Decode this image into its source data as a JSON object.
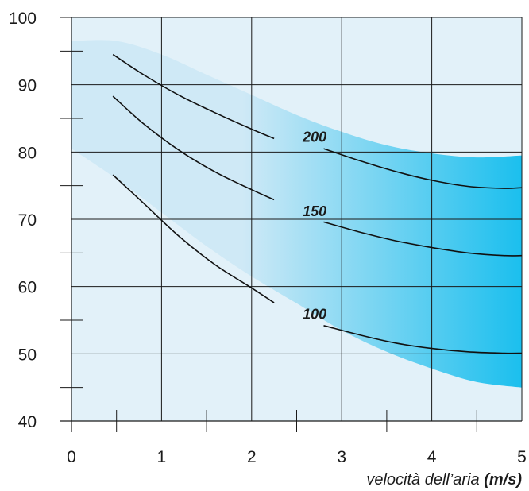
{
  "chart_data": {
    "type": "line",
    "title": "",
    "xlabel": "velocità dell’aria",
    "xlabel_unit": "(m/s)",
    "ylabel": "",
    "xlim": [
      0,
      5
    ],
    "ylim": [
      40,
      100
    ],
    "x_ticks": [
      0,
      1,
      2,
      3,
      4,
      5
    ],
    "y_ticks": [
      40,
      50,
      60,
      70,
      80,
      90,
      100
    ],
    "grid": true,
    "band": {
      "upper": [
        [
          0,
          96.5
        ],
        [
          0.5,
          96.5
        ],
        [
          1,
          94.5
        ],
        [
          1.5,
          91.5
        ],
        [
          2,
          88.5
        ],
        [
          2.5,
          85.5
        ],
        [
          3,
          83
        ],
        [
          3.5,
          81
        ],
        [
          4,
          79.8
        ],
        [
          4.5,
          79.2
        ],
        [
          5,
          79.5
        ]
      ],
      "lower": [
        [
          0,
          80.5
        ],
        [
          0.5,
          76
        ],
        [
          1,
          71
        ],
        [
          1.5,
          66
        ],
        [
          2,
          61.5
        ],
        [
          2.5,
          57.5
        ],
        [
          3,
          53.5
        ],
        [
          3.5,
          50.3
        ],
        [
          4,
          47.8
        ],
        [
          4.5,
          45.8
        ],
        [
          5,
          45
        ]
      ],
      "colors": [
        "#cfe9f6",
        "#1bbfee"
      ]
    },
    "series": [
      {
        "name": "200",
        "label_at": [
          2.7,
          81.5
        ],
        "segments": [
          [
            [
              0.46,
              94.5
            ],
            [
              0.8,
              91.5
            ],
            [
              1.2,
              88.4
            ],
            [
              1.6,
              85.8
            ],
            [
              2.0,
              83.4
            ],
            [
              2.25,
              82.0
            ]
          ],
          [
            [
              2.8,
              80.5
            ],
            [
              3.2,
              78.7
            ],
            [
              3.6,
              77.1
            ],
            [
              4.0,
              75.8
            ],
            [
              4.4,
              74.9
            ],
            [
              4.8,
              74.6
            ],
            [
              5.0,
              74.7
            ]
          ]
        ]
      },
      {
        "name": "150",
        "label_at": [
          2.7,
          70.5
        ],
        "segments": [
          [
            [
              0.46,
              88.3
            ],
            [
              0.8,
              84.2
            ],
            [
              1.2,
              80.2
            ],
            [
              1.6,
              77.0
            ],
            [
              2.0,
              74.4
            ],
            [
              2.25,
              72.9
            ]
          ],
          [
            [
              2.8,
              69.6
            ],
            [
              3.2,
              68.1
            ],
            [
              3.6,
              66.8
            ],
            [
              4.0,
              65.8
            ],
            [
              4.4,
              65.0
            ],
            [
              4.8,
              64.6
            ],
            [
              5.0,
              64.6
            ]
          ]
        ]
      },
      {
        "name": "100",
        "label_at": [
          2.7,
          55.2
        ],
        "segments": [
          [
            [
              0.46,
              76.6
            ],
            [
              0.8,
              72.4
            ],
            [
              1.2,
              67.4
            ],
            [
              1.6,
              63.2
            ],
            [
              2.0,
              59.8
            ],
            [
              2.25,
              57.6
            ]
          ],
          [
            [
              2.8,
              54.2
            ],
            [
              3.2,
              52.8
            ],
            [
              3.6,
              51.6
            ],
            [
              4.0,
              50.8
            ],
            [
              4.4,
              50.3
            ],
            [
              4.8,
              50.1
            ],
            [
              5.0,
              50.1
            ]
          ]
        ]
      }
    ]
  }
}
